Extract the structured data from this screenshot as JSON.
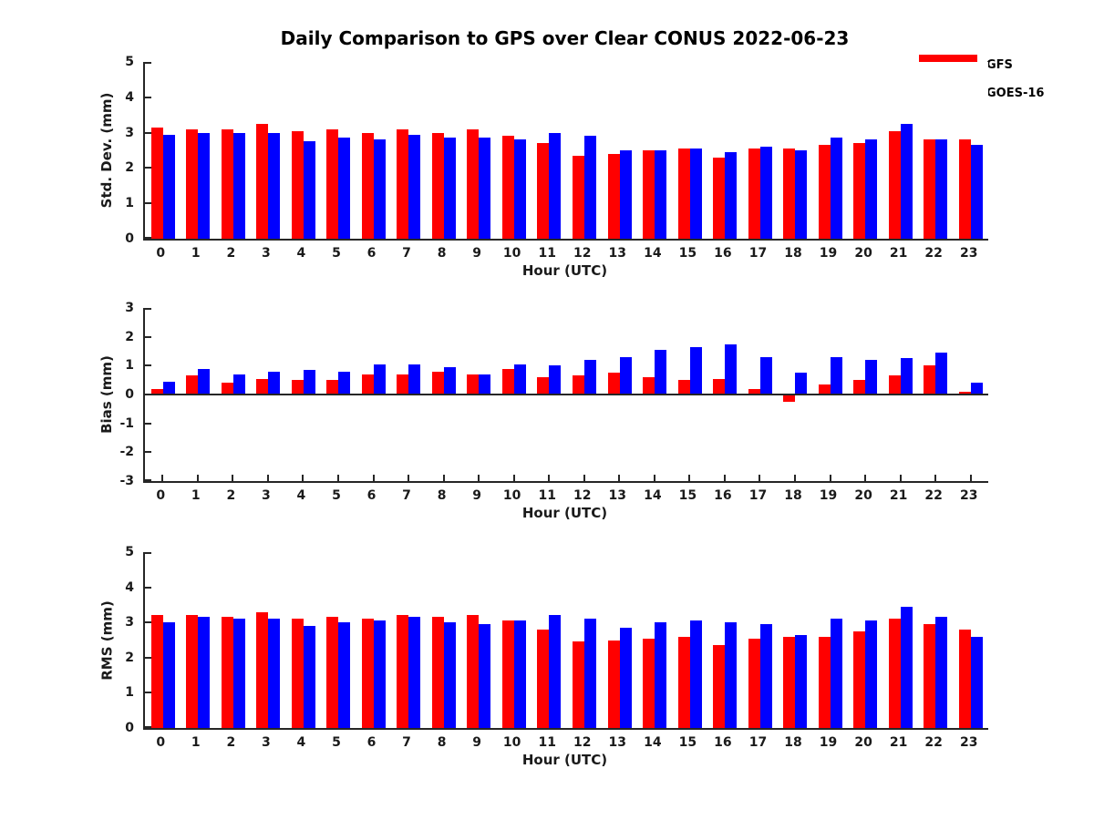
{
  "chart_data": {
    "type": "bar",
    "title": "Daily Comparison to GPS over Clear CONUS 2022-06-23",
    "xlabel": "Hour (UTC)",
    "categories": [
      "0",
      "1",
      "2",
      "3",
      "4",
      "5",
      "6",
      "7",
      "8",
      "9",
      "10",
      "11",
      "12",
      "13",
      "14",
      "15",
      "16",
      "17",
      "18",
      "19",
      "20",
      "21",
      "22",
      "23"
    ],
    "series_names": [
      "GFS",
      "GOES-16"
    ],
    "colors": {
      "GFS": "#ff0000",
      "GOES-16": "#0000ff"
    },
    "axis_color": "#262626",
    "legend_position": "top-right",
    "grid": "off",
    "panels": [
      {
        "ylabel": "Std. Dev. (mm)",
        "ylim": [
          0,
          5
        ],
        "yticks": [
          0,
          1,
          2,
          3,
          4,
          5
        ],
        "series": [
          {
            "name": "GFS",
            "values": [
              3.15,
              3.1,
              3.1,
              3.25,
              3.05,
              3.1,
              3.0,
              3.1,
              3.0,
              3.1,
              2.9,
              2.7,
              2.35,
              2.4,
              2.5,
              2.55,
              2.3,
              2.55,
              2.55,
              2.65,
              2.7,
              3.05,
              2.8,
              2.8
            ]
          },
          {
            "name": "GOES-16",
            "values": [
              2.95,
              3.0,
              3.0,
              3.0,
              2.75,
              2.85,
              2.8,
              2.95,
              2.85,
              2.85,
              2.8,
              3.0,
              2.9,
              2.5,
              2.5,
              2.55,
              2.45,
              2.6,
              2.5,
              2.85,
              2.8,
              3.25,
              2.8,
              2.65
            ]
          }
        ]
      },
      {
        "ylabel": "Bias (mm)",
        "ylim": [
          -3,
          3
        ],
        "yticks": [
          -3,
          -2,
          -1,
          0,
          1,
          2,
          3
        ],
        "series": [
          {
            "name": "GFS",
            "values": [
              0.2,
              0.65,
              0.4,
              0.55,
              0.5,
              0.5,
              0.7,
              0.7,
              0.8,
              0.7,
              0.9,
              0.6,
              0.65,
              0.75,
              0.6,
              0.5,
              0.55,
              0.2,
              -0.25,
              0.35,
              0.5,
              0.65,
              1.0,
              0.1
            ]
          },
          {
            "name": "GOES-16",
            "values": [
              0.45,
              0.9,
              0.7,
              0.8,
              0.85,
              0.8,
              1.05,
              1.05,
              0.95,
              0.7,
              1.05,
              1.0,
              1.2,
              1.3,
              1.55,
              1.65,
              1.75,
              1.3,
              0.75,
              1.3,
              1.2,
              1.25,
              1.45,
              0.4
            ]
          }
        ]
      },
      {
        "ylabel": "RMS (mm)",
        "ylim": [
          0,
          5
        ],
        "yticks": [
          0,
          1,
          2,
          3,
          4,
          5
        ],
        "series": [
          {
            "name": "GFS",
            "values": [
              3.2,
              3.2,
              3.15,
              3.3,
              3.1,
              3.15,
              3.1,
              3.2,
              3.15,
              3.2,
              3.05,
              2.8,
              2.45,
              2.5,
              2.55,
              2.6,
              2.35,
              2.55,
              2.6,
              2.6,
              2.75,
              3.1,
              2.95,
              2.8
            ]
          },
          {
            "name": "GOES-16",
            "values": [
              3.0,
              3.15,
              3.1,
              3.1,
              2.9,
              3.0,
              3.05,
              3.15,
              3.0,
              2.95,
              3.05,
              3.2,
              3.1,
              2.85,
              3.0,
              3.05,
              3.0,
              2.95,
              2.65,
              3.1,
              3.05,
              3.45,
              3.15,
              2.6
            ]
          }
        ]
      }
    ]
  }
}
